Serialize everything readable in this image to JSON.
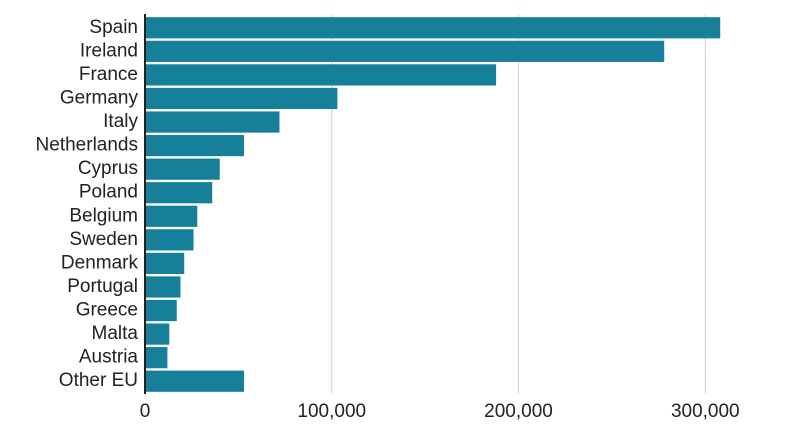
{
  "chart_data": {
    "type": "hbar",
    "categories": [
      "Spain",
      "Ireland",
      "France",
      "Germany",
      "Italy",
      "Netherlands",
      "Cyprus",
      "Poland",
      "Belgium",
      "Sweden",
      "Denmark",
      "Portugal",
      "Greece",
      "Malta",
      "Austria",
      "Other EU"
    ],
    "values": [
      308000,
      278000,
      188000,
      103000,
      72000,
      53000,
      40000,
      36000,
      28000,
      26000,
      21000,
      19000,
      17000,
      13000,
      12000,
      53000
    ],
    "color": "#167f99",
    "xlim": [
      0,
      340000
    ],
    "xticks": [
      0,
      {
        "value": 100000,
        "label": "100,000"
      },
      {
        "value": 200000,
        "label": "200,000"
      },
      {
        "value": 300000,
        "label": "300,000"
      }
    ],
    "grid": true
  }
}
